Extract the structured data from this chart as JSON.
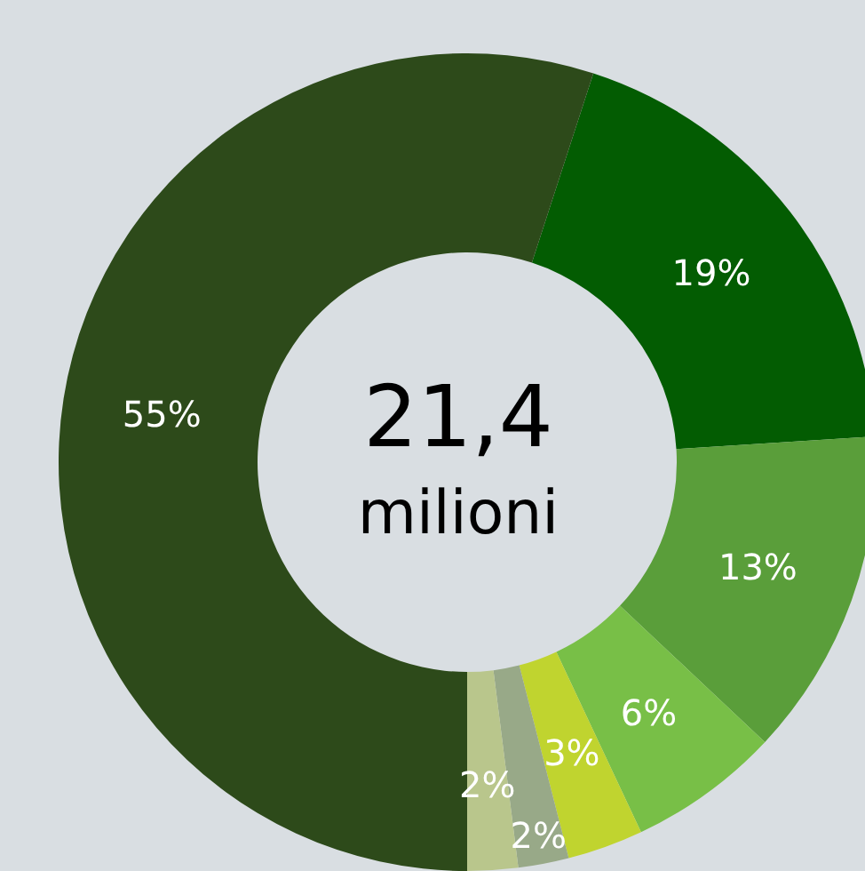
{
  "chart_data": {
    "type": "donut",
    "categories": [
      null,
      null,
      null,
      null,
      null,
      null,
      null
    ],
    "values": [
      19,
      13,
      6,
      3,
      2,
      2,
      55
    ],
    "colors": [
      "#035c02",
      "#5a9e3a",
      "#78bf47",
      "#c0d42f",
      "#98a988",
      "#b9c68c",
      "#2d4a1a"
    ],
    "value_labels": [
      "19%",
      "13%",
      "6%",
      "3%",
      "2%",
      "2%",
      "55%"
    ],
    "annotations": [
      "21,4",
      "milioni"
    ],
    "legend": false
  }
}
